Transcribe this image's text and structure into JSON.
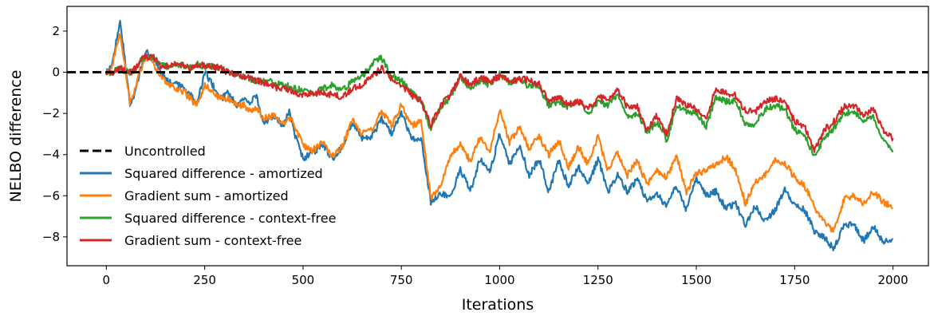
{
  "chart_data": {
    "type": "line",
    "title": "",
    "xlabel": "Iterations",
    "ylabel": "NELBO difference",
    "xlim": [
      -100,
      2090
    ],
    "ylim": [
      -9.4,
      3.2
    ],
    "xticks": [
      0,
      250,
      500,
      750,
      1000,
      1250,
      1500,
      1750,
      2000
    ],
    "yticks": [
      -8,
      -6,
      -4,
      -2,
      0,
      2
    ],
    "grid": false,
    "legend_position": "lower-left",
    "reference_line": {
      "name": "Uncontrolled",
      "y": 0,
      "color": "#000000",
      "style": "dashed"
    },
    "series": [
      {
        "name": "Squared difference - amortized",
        "color": "#1f77b4",
        "x": [
          0,
          15,
          25,
          35,
          45,
          60,
          70,
          85,
          100,
          120,
          140,
          160,
          180,
          200,
          215,
          230,
          250,
          270,
          290,
          310,
          330,
          350,
          365,
          380,
          400,
          425,
          450,
          465,
          480,
          500,
          525,
          550,
          575,
          600,
          625,
          650,
          675,
          700,
          725,
          750,
          775,
          800,
          825,
          850,
          875,
          900,
          925,
          950,
          975,
          1000,
          1025,
          1050,
          1075,
          1100,
          1125,
          1150,
          1175,
          1200,
          1225,
          1250,
          1275,
          1300,
          1325,
          1350,
          1375,
          1400,
          1425,
          1450,
          1475,
          1500,
          1525,
          1550,
          1575,
          1600,
          1625,
          1650,
          1675,
          1700,
          1725,
          1750,
          1775,
          1800,
          1825,
          1850,
          1875,
          1900,
          1925,
          1950,
          1975,
          2000
        ],
        "y": [
          0.0,
          0.4,
          1.5,
          2.4,
          1.0,
          -1.6,
          -1.2,
          0.0,
          1.0,
          0.7,
          0.0,
          -0.5,
          -0.6,
          -0.8,
          -1.1,
          -1.6,
          0.0,
          -0.6,
          -1.3,
          -1.0,
          -1.6,
          -1.3,
          -1.6,
          -1.1,
          -2.5,
          -2.1,
          -2.6,
          -1.9,
          -3.1,
          -4.2,
          -3.9,
          -3.5,
          -4.2,
          -3.6,
          -2.4,
          -3.2,
          -3.1,
          -2.3,
          -3.0,
          -1.9,
          -3.2,
          -3.2,
          -6.3,
          -5.9,
          -6.1,
          -4.7,
          -5.8,
          -4.2,
          -4.9,
          -3.0,
          -4.5,
          -3.5,
          -5.0,
          -4.2,
          -5.8,
          -4.3,
          -5.5,
          -4.6,
          -5.5,
          -4.2,
          -5.8,
          -5.0,
          -5.8,
          -5.2,
          -6.3,
          -5.9,
          -6.5,
          -5.5,
          -6.7,
          -5.1,
          -6.0,
          -5.8,
          -6.6,
          -6.4,
          -7.4,
          -6.5,
          -7.2,
          -6.7,
          -5.7,
          -6.4,
          -6.7,
          -7.7,
          -8.0,
          -8.6,
          -7.4,
          -7.4,
          -8.2,
          -7.5,
          -8.3,
          -8.1
        ]
      },
      {
        "name": "Gradient sum - amortized",
        "color": "#ff7f0e",
        "x": [
          0,
          15,
          25,
          35,
          45,
          60,
          70,
          85,
          100,
          120,
          140,
          160,
          180,
          200,
          215,
          230,
          250,
          270,
          290,
          310,
          330,
          350,
          365,
          380,
          400,
          425,
          450,
          465,
          480,
          500,
          525,
          550,
          575,
          600,
          625,
          650,
          675,
          700,
          725,
          750,
          775,
          800,
          825,
          850,
          875,
          900,
          925,
          950,
          975,
          1000,
          1025,
          1050,
          1075,
          1100,
          1125,
          1150,
          1175,
          1200,
          1225,
          1250,
          1275,
          1300,
          1325,
          1350,
          1375,
          1400,
          1425,
          1450,
          1475,
          1500,
          1525,
          1550,
          1575,
          1600,
          1625,
          1650,
          1675,
          1700,
          1725,
          1750,
          1775,
          1800,
          1825,
          1850,
          1875,
          1900,
          1925,
          1950,
          1975,
          2000
        ],
        "y": [
          0.0,
          0.3,
          1.3,
          1.9,
          0.7,
          -1.5,
          -1.0,
          0.0,
          0.8,
          0.4,
          -0.2,
          -0.6,
          -0.8,
          -1.0,
          -1.3,
          -1.6,
          -0.6,
          -1.0,
          -1.3,
          -1.3,
          -1.6,
          -1.6,
          -1.9,
          -1.7,
          -2.2,
          -2.1,
          -2.5,
          -2.2,
          -2.6,
          -3.6,
          -3.8,
          -3.4,
          -4.1,
          -3.6,
          -2.3,
          -3.0,
          -2.8,
          -1.9,
          -2.6,
          -1.6,
          -2.6,
          -2.4,
          -6.1,
          -5.6,
          -4.0,
          -3.5,
          -4.3,
          -3.2,
          -3.8,
          -1.8,
          -3.4,
          -2.7,
          -3.7,
          -3.1,
          -4.0,
          -3.3,
          -4.6,
          -3.6,
          -4.5,
          -3.1,
          -4.8,
          -3.9,
          -5.0,
          -4.3,
          -5.5,
          -4.8,
          -5.1,
          -4.1,
          -5.8,
          -4.9,
          -4.8,
          -4.5,
          -4.1,
          -4.7,
          -6.4,
          -5.3,
          -5.0,
          -4.3,
          -4.4,
          -5.1,
          -5.5,
          -6.5,
          -7.3,
          -7.7,
          -6.2,
          -6.0,
          -6.4,
          -5.8,
          -6.3,
          -6.6
        ]
      },
      {
        "name": "Squared difference - context-free",
        "color": "#2ca02c",
        "x": [
          0,
          15,
          25,
          35,
          45,
          60,
          70,
          85,
          100,
          120,
          140,
          160,
          180,
          200,
          215,
          230,
          250,
          270,
          290,
          310,
          330,
          350,
          365,
          380,
          400,
          425,
          450,
          465,
          480,
          500,
          525,
          550,
          575,
          600,
          625,
          650,
          675,
          700,
          725,
          750,
          775,
          800,
          825,
          850,
          875,
          900,
          925,
          950,
          975,
          1000,
          1025,
          1050,
          1075,
          1100,
          1125,
          1150,
          1175,
          1200,
          1225,
          1250,
          1275,
          1300,
          1325,
          1350,
          1375,
          1400,
          1425,
          1450,
          1475,
          1500,
          1525,
          1550,
          1575,
          1600,
          1625,
          1650,
          1675,
          1700,
          1725,
          1750,
          1775,
          1800,
          1825,
          1850,
          1875,
          1900,
          1925,
          1950,
          1975,
          2000
        ],
        "y": [
          0.0,
          0.0,
          0.1,
          0.2,
          0.1,
          0.0,
          0.1,
          0.5,
          0.8,
          0.7,
          0.3,
          0.3,
          0.4,
          0.3,
          0.2,
          0.4,
          0.3,
          0.3,
          0.2,
          0.0,
          -0.1,
          -0.2,
          -0.3,
          -0.4,
          -0.4,
          -0.5,
          -0.6,
          -0.7,
          -0.8,
          -0.9,
          -1.0,
          -0.8,
          -0.6,
          -0.9,
          -0.4,
          -0.2,
          0.4,
          0.7,
          -0.2,
          -0.4,
          -1.0,
          -1.3,
          -2.8,
          -1.7,
          -1.2,
          -0.2,
          -0.8,
          -0.4,
          -0.6,
          -0.1,
          -0.5,
          -0.3,
          -0.7,
          -0.7,
          -1.6,
          -1.4,
          -1.7,
          -1.4,
          -2.0,
          -1.4,
          -1.6,
          -1.1,
          -2.2,
          -2.0,
          -2.9,
          -2.4,
          -3.3,
          -1.6,
          -1.9,
          -2.0,
          -2.6,
          -1.2,
          -1.4,
          -1.4,
          -2.5,
          -2.5,
          -1.8,
          -1.6,
          -1.8,
          -2.8,
          -3.0,
          -4.1,
          -3.2,
          -2.7,
          -2.0,
          -1.9,
          -2.4,
          -2.2,
          -3.3,
          -3.8
        ]
      },
      {
        "name": "Gradient sum - context-free",
        "color": "#d62728",
        "x": [
          0,
          15,
          25,
          35,
          45,
          60,
          70,
          85,
          100,
          120,
          140,
          160,
          180,
          200,
          215,
          230,
          250,
          270,
          290,
          310,
          330,
          350,
          365,
          380,
          400,
          425,
          450,
          465,
          480,
          500,
          525,
          550,
          575,
          600,
          625,
          650,
          675,
          700,
          725,
          750,
          775,
          800,
          825,
          850,
          875,
          900,
          925,
          950,
          975,
          1000,
          1025,
          1050,
          1075,
          1100,
          1125,
          1150,
          1175,
          1200,
          1225,
          1250,
          1275,
          1300,
          1325,
          1350,
          1375,
          1400,
          1425,
          1450,
          1475,
          1500,
          1525,
          1550,
          1575,
          1600,
          1625,
          1650,
          1675,
          1700,
          1725,
          1750,
          1775,
          1800,
          1825,
          1850,
          1875,
          1900,
          1925,
          1950,
          1975,
          2000
        ],
        "y": [
          0.0,
          0.0,
          0.1,
          0.2,
          0.1,
          0.0,
          0.1,
          0.5,
          0.8,
          0.7,
          0.3,
          0.3,
          0.4,
          0.3,
          0.2,
          0.4,
          0.3,
          0.3,
          0.2,
          0.0,
          -0.1,
          -0.2,
          -0.3,
          -0.4,
          -0.5,
          -0.7,
          -0.8,
          -0.9,
          -1.0,
          -1.1,
          -1.0,
          -1.0,
          -1.1,
          -1.2,
          -0.8,
          -0.6,
          -0.2,
          0.2,
          -0.3,
          -0.6,
          -1.1,
          -1.4,
          -2.6,
          -1.6,
          -1.1,
          -0.2,
          -0.6,
          -0.3,
          -0.4,
          -0.2,
          -0.5,
          -0.3,
          -0.4,
          -0.6,
          -1.4,
          -1.2,
          -1.6,
          -1.4,
          -1.8,
          -1.2,
          -1.3,
          -0.8,
          -1.7,
          -1.7,
          -2.8,
          -2.1,
          -3.0,
          -1.3,
          -1.6,
          -1.8,
          -2.2,
          -0.8,
          -1.0,
          -1.1,
          -1.9,
          -1.9,
          -1.4,
          -1.3,
          -1.4,
          -2.4,
          -2.6,
          -3.8,
          -2.8,
          -2.4,
          -1.7,
          -1.6,
          -2.1,
          -1.8,
          -2.8,
          -3.2
        ]
      }
    ]
  }
}
